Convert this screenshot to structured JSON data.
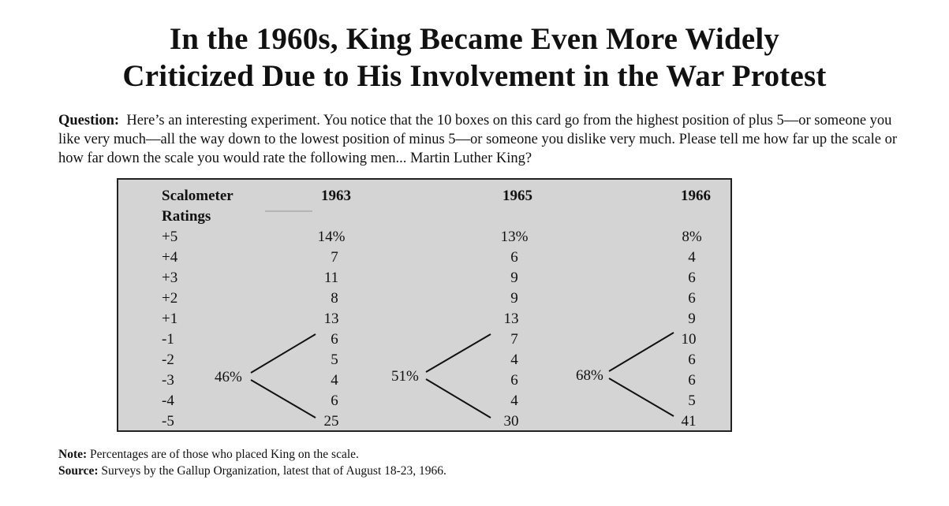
{
  "title": {
    "line1": "In the 1960s, King Became Even More Widely",
    "line2": "Criticized Due to His Involvement in the War Protest"
  },
  "question": {
    "label": "Question:",
    "text": "Here’s an interesting experiment. You notice that the 10 boxes on this card go from the highest position of plus 5—or someone you like very much—all the way down to the lowest position of minus 5—or someone you dislike very much. Please tell me how far up the scale or how far down the scale you would rate the following men... Martin Luther King?"
  },
  "table": {
    "header_line1": "Scalometer",
    "header_line2": "Ratings",
    "columns": [
      "1963",
      "1965",
      "1966"
    ],
    "rows": [
      {
        "rating": "+5",
        "values": [
          "14%",
          "13%",
          "8%"
        ]
      },
      {
        "rating": "+4",
        "values": [
          "7",
          "6",
          "4"
        ]
      },
      {
        "rating": "+3",
        "values": [
          "11",
          "9",
          "6"
        ]
      },
      {
        "rating": "+2",
        "values": [
          "8",
          "9",
          "6"
        ]
      },
      {
        "rating": "+1",
        "values": [
          "13",
          "13",
          "9"
        ]
      },
      {
        "rating": "-1",
        "values": [
          "6",
          "7",
          "10"
        ]
      },
      {
        "rating": "-2",
        "values": [
          "5",
          "4",
          "6"
        ]
      },
      {
        "rating": "-3",
        "values": [
          "4",
          "6",
          "6"
        ]
      },
      {
        "rating": "-4",
        "values": [
          "6",
          "4",
          "5"
        ]
      },
      {
        "rating": "-5",
        "values": [
          "25",
          "30",
          "41"
        ]
      }
    ],
    "negative_totals": [
      "46%",
      "51%",
      "68%"
    ]
  },
  "note": {
    "label": "Note:",
    "text": "Percentages are of those who placed King on the scale."
  },
  "source": {
    "label": "Source:",
    "text": "Surveys by the Gallup Organization, latest that of August 18-23, 1966."
  }
}
